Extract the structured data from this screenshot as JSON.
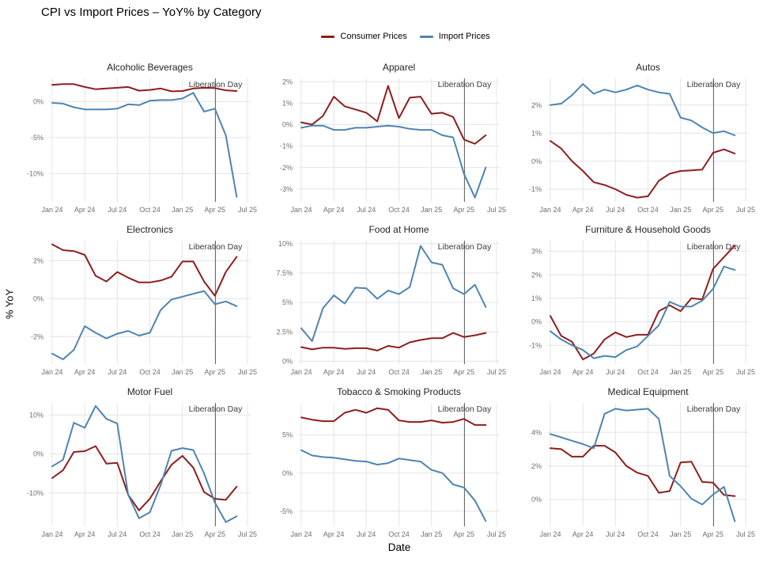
{
  "figure": {
    "title": "CPI vs Import Prices – YoY% by Category",
    "x_axis_label": "Date",
    "y_axis_label": "% YoY",
    "legend": [
      {
        "label": "Consumer Prices",
        "color": "#8F1D1D"
      },
      {
        "label": "Import Prices",
        "color": "#4E84B2"
      }
    ],
    "colors": {
      "gridline": "#E4E4E4",
      "annotation_line": "#6A6A6A",
      "tick_text": "#6F6F6F"
    }
  },
  "chart_data": {
    "type": "line",
    "grid": true,
    "x_tick_labels": [
      "Jan 24",
      "Apr 24",
      "Jul 24",
      "Oct 24",
      "Jan 25",
      "Apr 25",
      "Jul 25"
    ],
    "x_tick_positions": [
      0,
      3,
      6,
      9,
      12,
      15,
      18
    ],
    "x_months": [
      "Jan 2024",
      "Feb 2024",
      "Mar 2024",
      "Apr 2024",
      "May 2024",
      "Jun 2024",
      "Jul 2024",
      "Aug 2024",
      "Sep 2024",
      "Oct 2024",
      "Nov 2024",
      "Dec 2024",
      "Jan 2025",
      "Feb 2025",
      "Mar 2025",
      "Apr 2025",
      "May 2025",
      "Jun 2025"
    ],
    "annotation": {
      "label": "Liberation Day",
      "x_index": 15.05
    },
    "series_names": [
      "Consumer Prices",
      "Import Prices"
    ],
    "panels": [
      {
        "slug": "alcoholic-beverages",
        "title": "Alcoholic Beverages",
        "ylim": [
          -13.9,
          3.2
        ],
        "yticks": [
          0,
          -5,
          -10
        ],
        "consumer": [
          2.3,
          2.4,
          2.4,
          2.0,
          1.7,
          1.8,
          1.9,
          2.0,
          1.5,
          1.6,
          1.8,
          1.4,
          1.45,
          1.8,
          1.9,
          1.85,
          1.55,
          1.45
        ],
        "import": [
          -0.2,
          -0.3,
          -0.8,
          -1.1,
          -1.1,
          -1.1,
          -1.0,
          -0.4,
          -0.5,
          0.1,
          0.2,
          0.2,
          0.4,
          1.2,
          -1.4,
          -1.0,
          -4.7,
          -13.2
        ]
      },
      {
        "slug": "apparel",
        "title": "Apparel",
        "ylim": [
          -3.6,
          2.15
        ],
        "yticks": [
          2,
          1,
          0,
          -1,
          -2,
          -3
        ],
        "consumer": [
          0.1,
          0.0,
          0.4,
          1.3,
          0.85,
          0.7,
          0.55,
          0.15,
          1.8,
          0.3,
          1.25,
          1.3,
          0.5,
          0.55,
          0.35,
          -0.7,
          -0.9,
          -0.5
        ],
        "import": [
          -0.15,
          -0.05,
          -0.05,
          -0.25,
          -0.25,
          -0.15,
          -0.15,
          -0.1,
          -0.05,
          -0.1,
          -0.2,
          -0.25,
          -0.25,
          -0.5,
          -0.6,
          -2.3,
          -3.4,
          -2.0
        ]
      },
      {
        "slug": "autos",
        "title": "Autos",
        "ylim": [
          -1.45,
          2.95
        ],
        "yticks": [
          2,
          1,
          0,
          -1
        ],
        "consumer": [
          0.72,
          0.45,
          0.0,
          -0.35,
          -0.75,
          -0.85,
          -1.0,
          -1.2,
          -1.3,
          -1.25,
          -0.7,
          -0.45,
          -0.35,
          -0.33,
          -0.3,
          0.3,
          0.42,
          0.27
        ],
        "import": [
          2.0,
          2.05,
          2.35,
          2.75,
          2.4,
          2.55,
          2.45,
          2.55,
          2.7,
          2.55,
          2.45,
          2.4,
          1.55,
          1.45,
          1.2,
          1.0,
          1.07,
          0.92
        ]
      },
      {
        "slug": "electronics",
        "title": "Electronics",
        "ylim": [
          -3.45,
          3.05
        ],
        "yticks": [
          2,
          0,
          -2
        ],
        "consumer": [
          2.85,
          2.55,
          2.5,
          2.3,
          1.2,
          0.9,
          1.4,
          1.1,
          0.85,
          0.85,
          0.95,
          1.15,
          1.95,
          1.95,
          0.9,
          0.15,
          1.4,
          2.2
        ],
        "import": [
          -2.9,
          -3.2,
          -2.7,
          -1.45,
          -1.8,
          -2.1,
          -1.85,
          -1.7,
          -1.95,
          -1.8,
          -0.6,
          -0.05,
          0.1,
          0.25,
          0.4,
          -0.3,
          -0.15,
          -0.4
        ]
      },
      {
        "slug": "food-at-home",
        "title": "Food at Home",
        "ylim": [
          -0.25,
          10.25
        ],
        "yticks": [
          10,
          7.5,
          5,
          2.5,
          0
        ],
        "consumer": [
          1.2,
          1.0,
          1.15,
          1.15,
          1.05,
          1.1,
          1.1,
          0.9,
          1.3,
          1.15,
          1.6,
          1.8,
          1.95,
          1.95,
          2.4,
          2.05,
          2.2,
          2.4
        ],
        "import": [
          2.8,
          1.7,
          4.5,
          5.6,
          4.9,
          6.25,
          6.2,
          5.3,
          6.0,
          5.7,
          6.3,
          9.8,
          8.4,
          8.2,
          6.2,
          5.7,
          6.5,
          4.6
        ]
      },
      {
        "slug": "furniture-household-goods",
        "title": "Furniture & Household Goods",
        "ylim": [
          -1.8,
          3.45
        ],
        "yticks": [
          3,
          2,
          1,
          0,
          -1
        ],
        "consumer": [
          0.25,
          -0.6,
          -0.85,
          -1.6,
          -1.35,
          -0.75,
          -0.45,
          -0.65,
          -0.55,
          -0.55,
          0.45,
          0.7,
          0.45,
          1.0,
          0.95,
          2.25,
          2.75,
          3.25
        ],
        "import": [
          -0.4,
          -0.75,
          -1.0,
          -1.2,
          -1.55,
          -1.45,
          -1.5,
          -1.2,
          -1.05,
          -0.6,
          -0.15,
          0.85,
          0.65,
          0.65,
          0.9,
          1.4,
          2.35,
          2.2
        ]
      },
      {
        "slug": "motor-fuel",
        "title": "Motor Fuel",
        "ylim": [
          -18.6,
          13.1
        ],
        "yticks": [
          10,
          0,
          -10
        ],
        "consumer": [
          -6.2,
          -4.2,
          0.5,
          0.7,
          2.0,
          -2.5,
          -2.3,
          -10.5,
          -14.5,
          -11.5,
          -7.0,
          -2.8,
          -0.5,
          -3.5,
          -9.8,
          -11.5,
          -11.8,
          -8.4
        ],
        "import": [
          -3.2,
          -1.5,
          8.0,
          6.7,
          12.3,
          9.0,
          7.8,
          -10.5,
          -16.5,
          -15.0,
          -8.0,
          0.8,
          1.5,
          1.0,
          -5.0,
          -12.5,
          -17.5,
          -16.0
        ]
      },
      {
        "slug": "tobacco-smoking-products",
        "title": "Tobacco & Smoking Products",
        "ylim": [
          -7.0,
          9.2
        ],
        "yticks": [
          5,
          0,
          -5
        ],
        "consumer": [
          7.3,
          7.0,
          6.8,
          6.8,
          7.9,
          8.3,
          7.9,
          8.5,
          8.3,
          6.9,
          6.7,
          6.7,
          6.9,
          6.6,
          6.7,
          7.1,
          6.3,
          6.3
        ],
        "import": [
          3.0,
          2.3,
          2.1,
          2.0,
          1.8,
          1.6,
          1.5,
          1.1,
          1.3,
          1.9,
          1.7,
          1.5,
          0.4,
          0.0,
          -1.5,
          -1.9,
          -3.6,
          -6.3
        ]
      },
      {
        "slug": "medical-equipment",
        "title": "Medical Equipment",
        "ylim": [
          -1.6,
          5.75
        ],
        "yticks": [
          4,
          2,
          0
        ],
        "consumer": [
          3.05,
          3.0,
          2.55,
          2.55,
          3.2,
          3.2,
          2.8,
          2.0,
          1.6,
          1.4,
          0.4,
          0.5,
          2.2,
          2.25,
          1.05,
          1.0,
          0.27,
          0.2
        ],
        "import": [
          3.9,
          3.7,
          3.5,
          3.3,
          3.05,
          5.1,
          5.4,
          5.3,
          5.35,
          5.4,
          4.8,
          1.4,
          0.8,
          0.05,
          -0.3,
          0.3,
          0.75,
          -1.3
        ]
      }
    ]
  }
}
